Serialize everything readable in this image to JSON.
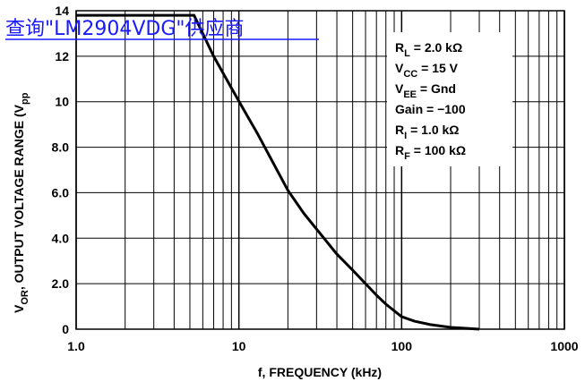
{
  "watermark": "查询\"LM2904VDG\"供应商",
  "chart_data": {
    "type": "line",
    "xscale": "log",
    "xlim": [
      1,
      1000
    ],
    "ylim": [
      0,
      14
    ],
    "xlabel": "f, FREQUENCY (kHz)",
    "ylabel": "V",
    "ylabel_sub": "OR",
    "ylabel_rest": ", OUTPUT VOLTAGE RANGE (V",
    "ylabel_sub2": "pp",
    "x_ticks": [
      {
        "value": 1,
        "label": "1.0"
      },
      {
        "value": 10,
        "label": "10"
      },
      {
        "value": 100,
        "label": "100"
      },
      {
        "value": 1000,
        "label": "1000"
      }
    ],
    "y_ticks": [
      {
        "value": 0,
        "label": "0"
      },
      {
        "value": 2,
        "label": "2.0"
      },
      {
        "value": 4,
        "label": "4.0"
      },
      {
        "value": 6,
        "label": "6.0"
      },
      {
        "value": 8,
        "label": "8.0"
      },
      {
        "value": 10,
        "label": "10"
      },
      {
        "value": 12,
        "label": "12"
      },
      {
        "value": 14,
        "label": "14"
      }
    ],
    "legend": [
      {
        "main": "R",
        "sub": "L",
        "rest": " = 2.0 kΩ"
      },
      {
        "main": "V",
        "sub": "CC",
        "rest": " = 15 V"
      },
      {
        "main": "V",
        "sub": "EE",
        "rest": " = Gnd"
      },
      {
        "main": "Gain",
        "sub": "",
        "rest": " = −100"
      },
      {
        "main": "R",
        "sub": "I",
        "rest": " = 1.0 kΩ"
      },
      {
        "main": "R",
        "sub": "F",
        "rest": " = 100 kΩ"
      }
    ],
    "series": [
      {
        "x": [
          1,
          3,
          5.3,
          7,
          9,
          11,
          13,
          16,
          20,
          25,
          30,
          40,
          50,
          60,
          70,
          80,
          100,
          120,
          150,
          200,
          300
        ],
        "y": [
          13.8,
          13.8,
          13.8,
          12.0,
          10.6,
          9.5,
          8.6,
          7.4,
          6.1,
          5.1,
          4.4,
          3.3,
          2.6,
          2.0,
          1.5,
          1.1,
          0.55,
          0.35,
          0.2,
          0.08,
          0.0
        ]
      }
    ]
  }
}
